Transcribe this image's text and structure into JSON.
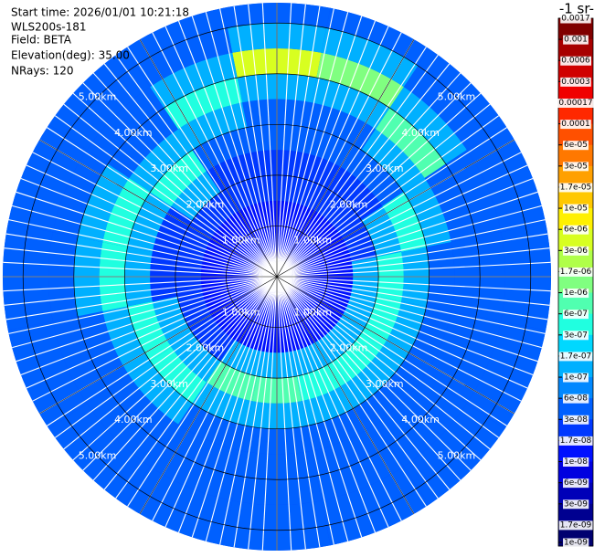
{
  "header": {
    "start_time": "Start time: 2026/01/01 10:21:18",
    "instrument": "WLS200s-181",
    "field": "Field: BETA",
    "elevation": "Elevation(deg): 35.00",
    "nrays": "NRays: 120"
  },
  "chart_data": {
    "type": "ppi",
    "rlim": [
      0,
      5.4
    ],
    "range_rings": [
      {
        "value": 1,
        "label": "1.00km"
      },
      {
        "value": 2,
        "label": "2.00km"
      },
      {
        "value": 3,
        "label": "3.00km"
      },
      {
        "value": 4,
        "label": "4.00km"
      },
      {
        "value": 5,
        "label": "5.00km"
      }
    ],
    "field": {
      "azimuth": [
        0,
        22.5,
        45,
        67.5,
        90,
        112.5,
        135,
        157.5,
        180,
        202.5,
        225,
        247.5,
        270,
        292.5,
        315,
        337.5
      ],
      "range_km": [
        0,
        0.5,
        1,
        1.5,
        2,
        2.5,
        3,
        3.5,
        4,
        4.5,
        5,
        5.5
      ],
      "values": [
        [
          6e-09,
          1e-08,
          1e-08,
          2e-08,
          2e-08,
          3e-08,
          3e-08,
          1e-07,
          3e-06,
          1e-07,
          3e-08
        ],
        [
          6e-09,
          1e-08,
          1e-08,
          2e-08,
          2e-08,
          3e-08,
          3e-08,
          1e-07,
          1e-06,
          1e-07,
          3e-08
        ],
        [
          6e-09,
          1e-08,
          1e-08,
          2e-08,
          2e-08,
          3e-08,
          1e-07,
          6e-07,
          1e-07,
          3e-08,
          3e-08
        ],
        [
          6e-09,
          1e-08,
          1e-08,
          2e-08,
          1e-07,
          3e-07,
          1e-07,
          3e-08,
          3e-08,
          3e-08,
          3e-08
        ],
        [
          6e-09,
          1e-08,
          1e-08,
          1e-07,
          3e-07,
          1e-07,
          3e-08,
          3e-08,
          3e-08,
          3e-08,
          3e-08
        ],
        [
          6e-09,
          1e-08,
          1e-08,
          1e-07,
          3e-07,
          1e-07,
          3e-08,
          3e-08,
          3e-08,
          3e-08,
          3e-08
        ],
        [
          6e-09,
          1e-08,
          1e-08,
          1e-07,
          3e-07,
          1e-07,
          3e-08,
          3e-08,
          3e-08,
          3e-08,
          3e-08
        ],
        [
          6e-09,
          1e-08,
          1e-08,
          1e-07,
          3e-07,
          1e-07,
          3e-08,
          3e-08,
          3e-08,
          3e-08,
          3e-08
        ],
        [
          6e-09,
          1e-08,
          1e-08,
          1e-07,
          6e-07,
          1e-07,
          3e-08,
          3e-08,
          3e-08,
          3e-08,
          3e-08
        ],
        [
          6e-09,
          1e-08,
          1e-08,
          1e-07,
          6e-07,
          1e-07,
          3e-08,
          3e-08,
          3e-08,
          3e-08,
          3e-08
        ],
        [
          6e-09,
          1e-08,
          1e-08,
          2e-08,
          1e-07,
          3e-07,
          1e-07,
          3e-08,
          3e-08,
          3e-08,
          3e-08
        ],
        [
          6e-09,
          1e-08,
          1e-08,
          2e-08,
          1e-07,
          3e-07,
          1e-07,
          3e-08,
          3e-08,
          3e-08,
          3e-08
        ],
        [
          6e-09,
          1e-08,
          1e-08,
          2e-08,
          2e-08,
          1e-07,
          3e-07,
          1e-07,
          3e-08,
          3e-08,
          3e-08
        ],
        [
          6e-09,
          1e-08,
          1e-08,
          2e-08,
          2e-08,
          1e-07,
          3e-07,
          1e-07,
          3e-08,
          3e-08,
          3e-08
        ],
        [
          6e-09,
          1e-08,
          1e-08,
          2e-08,
          1e-07,
          3e-07,
          1e-07,
          3e-08,
          3e-08,
          3e-08,
          3e-08
        ],
        [
          6e-09,
          1e-08,
          1e-08,
          2e-08,
          2e-08,
          3e-08,
          1e-07,
          3e-07,
          1e-07,
          3e-08,
          3e-08
        ]
      ]
    },
    "colorbar": {
      "label": "-1 sr-",
      "ticks": [
        0.0017,
        0.001,
        0.0006,
        0.0003,
        0.00017,
        0.0001,
        {
          "value": 6e-05,
          "label": "6e-05"
        },
        {
          "value": 3e-05,
          "label": "3e-05"
        },
        {
          "value": 1.7e-05,
          "label": "1.7e-05"
        },
        {
          "value": 1e-05,
          "label": "1e-05"
        },
        {
          "value": 6e-06,
          "label": "6e-06"
        },
        {
          "value": 3e-06,
          "label": "3e-06"
        },
        {
          "value": 1.7e-06,
          "label": "1.7e-06"
        },
        {
          "value": 1e-06,
          "label": "1e-06"
        },
        {
          "value": 6e-07,
          "label": "6e-07"
        },
        {
          "value": 3e-07,
          "label": "3e-07"
        },
        {
          "value": 1.7e-07,
          "label": "1.7e-07"
        },
        {
          "value": 1e-07,
          "label": "1e-07"
        },
        {
          "value": 6e-08,
          "label": "6e-08"
        },
        {
          "value": 3e-08,
          "label": "3e-08"
        },
        {
          "value": 1.7e-08,
          "label": "1.7e-08"
        },
        {
          "value": 1e-08,
          "label": "1e-08"
        },
        {
          "value": 6e-09,
          "label": "6e-09"
        },
        {
          "value": 3e-09,
          "label": "3e-09"
        },
        {
          "value": 1.7e-09,
          "label": "1.7e-09"
        },
        {
          "value": 1e-09,
          "label": "1e-09"
        }
      ],
      "colors": [
        "#800000",
        "#a80000",
        "#d00000",
        "#f00000",
        "#ff2800",
        "#ff5000",
        "#ff7800",
        "#ffa000",
        "#ffc800",
        "#fff000",
        "#d8ff20",
        "#b0ff48",
        "#80ff80",
        "#50ffb0",
        "#20ffe0",
        "#00d8ff",
        "#00b0ff",
        "#0088ff",
        "#0060ff",
        "#0038ff",
        "#0010ff",
        "#0000e0",
        "#0000b8",
        "#000090",
        "#000070"
      ]
    }
  }
}
